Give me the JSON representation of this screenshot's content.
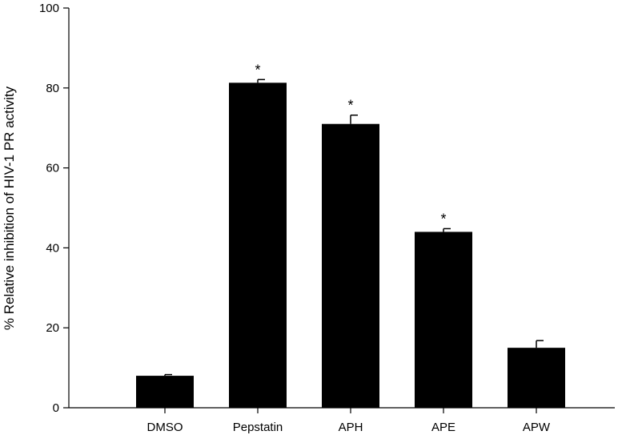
{
  "chart_data": {
    "type": "bar",
    "title": "",
    "xlabel": "",
    "ylabel": "% Relative inhibition of HIV-1 PR activity",
    "categories": [
      "DMSO",
      "Pepstatin",
      "APH",
      "APE",
      "APW"
    ],
    "values": [
      8,
      81.3,
      71,
      44,
      15
    ],
    "error": [
      0.3,
      0.8,
      2.2,
      0.8,
      1.8
    ],
    "significance": [
      "",
      "*",
      "*",
      "*",
      ""
    ],
    "ylim": [
      0,
      100
    ],
    "yticks": [
      0,
      20,
      40,
      60,
      80,
      100
    ],
    "bar_color": "#000000",
    "grid": false,
    "legend": "none"
  }
}
